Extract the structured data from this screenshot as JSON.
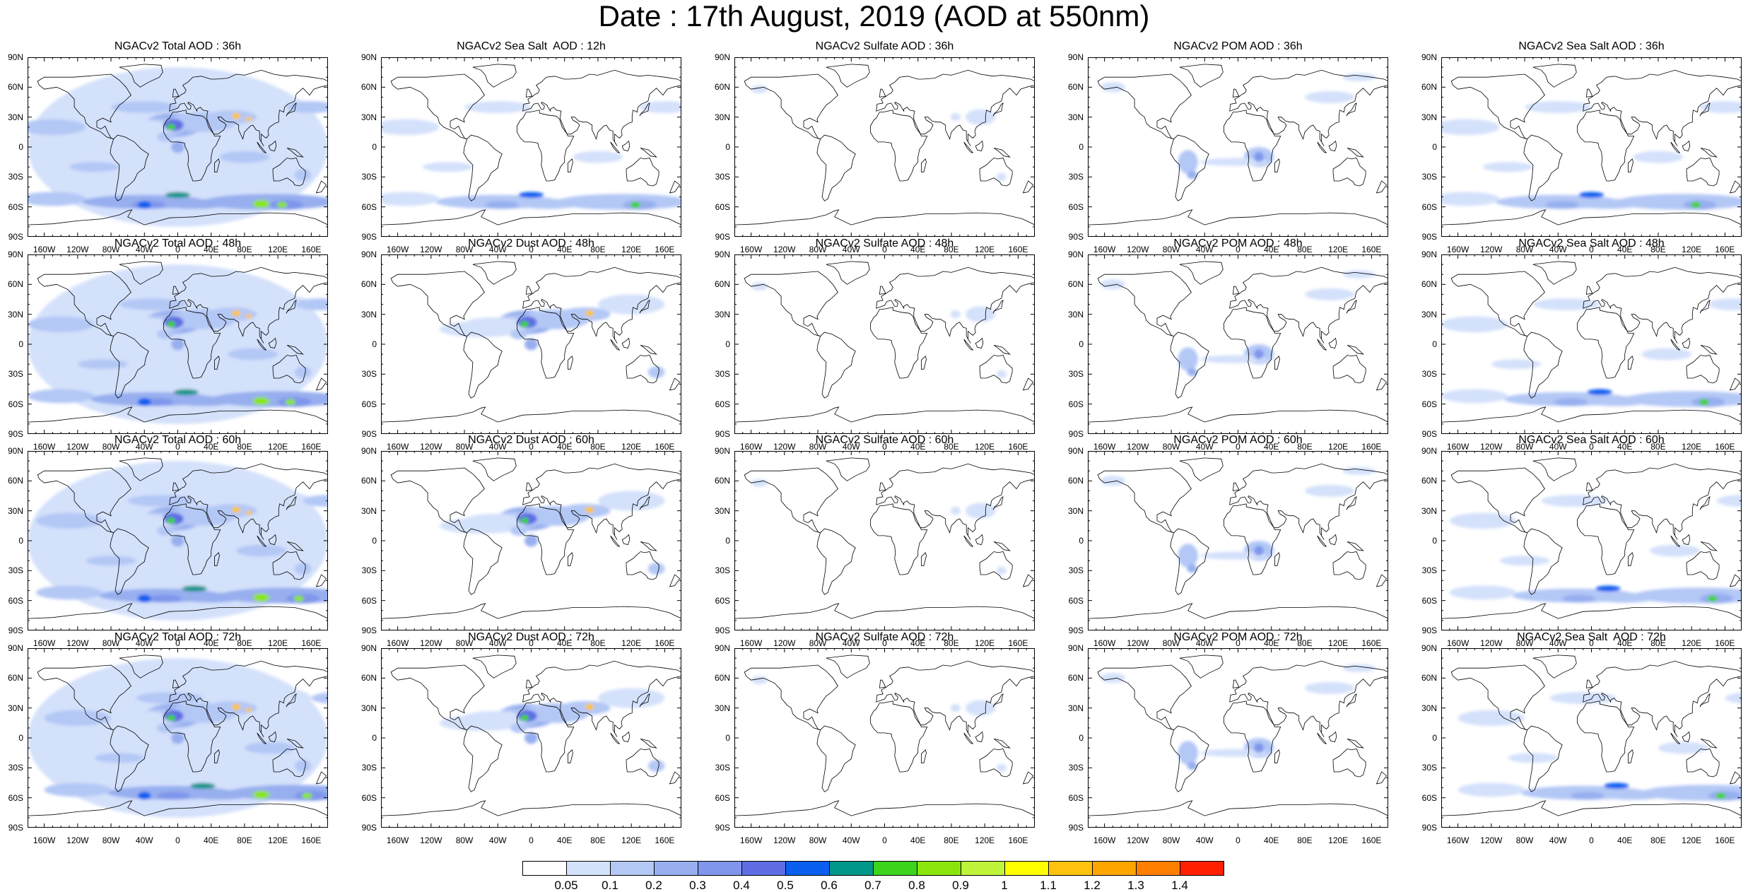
{
  "title": "Date : 17th August, 2019 (AOD at 550nm)",
  "panel_titles": [
    [
      "NGACv2 Total AOD : 36h",
      "NGACv2 Sea Salt  AOD : 12h",
      "NGACv2 Sulfate AOD : 36h",
      "NGACv2 POM AOD : 36h",
      "NGACv2 Sea Salt AOD : 36h"
    ],
    [
      "NGACv2 Total AOD : 48h",
      "NGACv2 Dust AOD : 48h",
      "NGACv2 Sulfate AOD : 48h",
      "NGACv2 POM AOD : 48h",
      "NGACv2 Sea Salt AOD : 48h"
    ],
    [
      "NGACv2 Total AOD : 60h",
      "NGACv2 Dust AOD : 60h",
      "NGACv2 Sulfate AOD : 60h",
      "NGACv2 POM AOD : 60h",
      "NGACv2 Sea Salt AOD : 60h"
    ],
    [
      "NGACv2 Total AOD : 72h",
      "NGACv2 Dust AOD : 72h",
      "NGACv2 Sulfate AOD : 72h",
      "NGACv2 POM AOD : 72h",
      "NGACv2 Sea Salt  AOD : 72h"
    ]
  ],
  "lat_ticks": [
    "90N",
    "60N",
    "30N",
    "0",
    "30S",
    "60S",
    "90S"
  ],
  "lon_ticks": [
    "160W",
    "120W",
    "80W",
    "40W",
    "0",
    "40E",
    "80E",
    "120E",
    "160E"
  ],
  "colorbar": {
    "labels": [
      "0.05",
      "0.1",
      "0.2",
      "0.3",
      "0.4",
      "0.5",
      "0.6",
      "0.7",
      "0.8",
      "0.9",
      "1",
      "1.1",
      "1.2",
      "1.3",
      "1.4"
    ],
    "colors": [
      "#ffffff",
      "#d4e1fb",
      "#b4c8f6",
      "#97afef",
      "#7f96ec",
      "#5f6ee3",
      "#0a5ef0",
      "#00968a",
      "#3cd31c",
      "#8ae60a",
      "#bff43a",
      "#ffff00",
      "#ffc30f",
      "#ffa500",
      "#ff7f00",
      "#ff2000"
    ]
  }
}
